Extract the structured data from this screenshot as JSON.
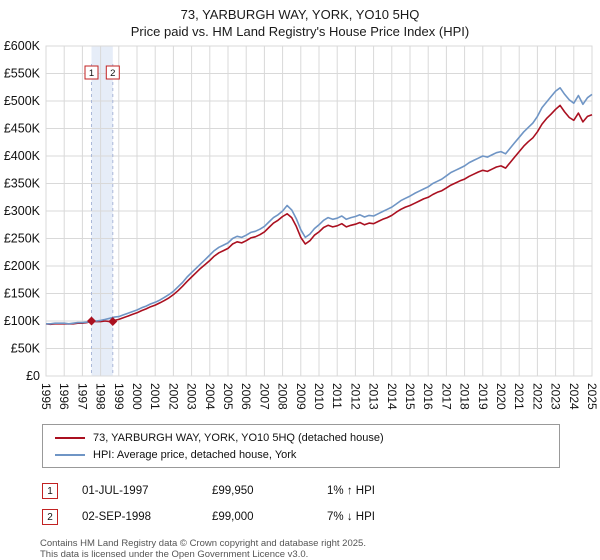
{
  "title": "73, YARBURGH WAY, YORK, YO10 5HQ",
  "subtitle": "Price paid vs. HM Land Registry's House Price Index (HPI)",
  "colors": {
    "property_line": "#aa1020",
    "hpi_line": "#6f95c5",
    "grid": "#d9d9d9",
    "band_fill": "#e6edf8",
    "band_edge": "#aab8d8",
    "marker_red": "#c22222",
    "axis_text": "#111111"
  },
  "chart_data": {
    "type": "line",
    "xlim": [
      1995,
      2025
    ],
    "ylim": [
      0,
      600
    ],
    "x_start": 1995,
    "x_step": 0.25,
    "x_tick_labels": [
      "1995",
      "1996",
      "1997",
      "1998",
      "1999",
      "2000",
      "2001",
      "2002",
      "2003",
      "2004",
      "2005",
      "2006",
      "2007",
      "2008",
      "2009",
      "2010",
      "2011",
      "2012",
      "2013",
      "2014",
      "2015",
      "2016",
      "2017",
      "2018",
      "2019",
      "2020",
      "2021",
      "2022",
      "2023",
      "2024",
      "2025"
    ],
    "y_tick_values": [
      0,
      50,
      100,
      150,
      200,
      250,
      300,
      350,
      400,
      450,
      500,
      550,
      600
    ],
    "y_tick_labels": [
      "£0",
      "£50K",
      "£100K",
      "£150K",
      "£200K",
      "£250K",
      "£300K",
      "£350K",
      "£400K",
      "£450K",
      "£500K",
      "£550K",
      "£600K"
    ],
    "grid": true,
    "legend_position": "bottom",
    "series": [
      {
        "name": "73, YARBURGH WAY, YORK, YO10 5HQ (detached house)",
        "color": "#aa1020",
        "values": [
          95,
          94,
          95,
          95,
          95,
          94.5,
          95,
          96,
          96,
          97,
          99.95,
          99,
          99,
          100,
          99,
          101,
          103,
          106,
          109,
          112,
          115,
          119,
          122,
          126,
          129,
          133,
          137,
          142,
          148,
          155,
          163,
          172,
          180,
          188,
          196,
          203,
          210,
          218,
          224,
          228,
          232,
          240,
          244,
          242,
          246,
          251,
          253,
          257,
          262,
          270,
          278,
          283,
          290,
          295,
          288,
          272,
          252,
          240,
          246,
          256,
          262,
          270,
          274,
          271,
          273,
          277,
          271,
          274,
          276,
          279,
          275,
          278,
          277,
          281,
          285,
          288,
          292,
          298,
          303,
          307,
          310,
          314,
          318,
          322,
          325,
          330,
          334,
          337,
          342,
          347,
          351,
          355,
          358,
          363,
          367,
          371,
          374,
          372,
          376,
          380,
          382,
          378,
          388,
          398,
          408,
          418,
          426,
          433,
          444,
          458,
          468,
          476,
          485,
          492,
          480,
          470,
          465,
          478,
          462,
          472,
          475
        ]
      },
      {
        "name": "HPI: Average price, detached house, York",
        "color": "#6f95c5",
        "values": [
          95,
          95,
          96,
          96,
          96,
          95,
          96,
          97,
          97,
          98,
          99,
          100,
          101,
          103,
          105,
          107,
          108,
          111,
          114,
          117,
          120,
          124,
          127,
          131,
          134,
          138,
          143,
          148,
          154,
          162,
          170,
          180,
          188,
          196,
          204,
          212,
          220,
          228,
          234,
          238,
          242,
          250,
          254,
          252,
          256,
          261,
          263,
          267,
          272,
          280,
          288,
          293,
          300,
          310,
          302,
          286,
          266,
          252,
          258,
          268,
          275,
          283,
          288,
          285,
          287,
          291,
          285,
          288,
          290,
          293,
          289,
          292,
          291,
          295,
          299,
          303,
          307,
          313,
          319,
          323,
          327,
          332,
          336,
          340,
          344,
          350,
          354,
          358,
          364,
          370,
          374,
          378,
          382,
          388,
          392,
          396,
          400,
          398,
          402,
          406,
          408,
          404,
          414,
          424,
          434,
          444,
          452,
          460,
          472,
          488,
          498,
          508,
          518,
          524,
          512,
          502,
          496,
          510,
          494,
          506,
          512
        ]
      }
    ],
    "sales": [
      {
        "label": "1",
        "x": 1997.5,
        "y": 99.95
      },
      {
        "label": "2",
        "x": 1998.67,
        "y": 99.0
      }
    ],
    "band": {
      "from": 1997.5,
      "to": 1998.67
    }
  },
  "transactions": [
    {
      "num": "1",
      "date": "01-JUL-1997",
      "price": "£99,950",
      "hpi": "1% ↑ HPI"
    },
    {
      "num": "2",
      "date": "02-SEP-1998",
      "price": "£99,000",
      "hpi": "7% ↓ HPI"
    }
  ],
  "footer": {
    "line1": "Contains HM Land Registry data © Crown copyright and database right 2025.",
    "line2": "This data is licensed under the Open Government Licence v3.0."
  }
}
